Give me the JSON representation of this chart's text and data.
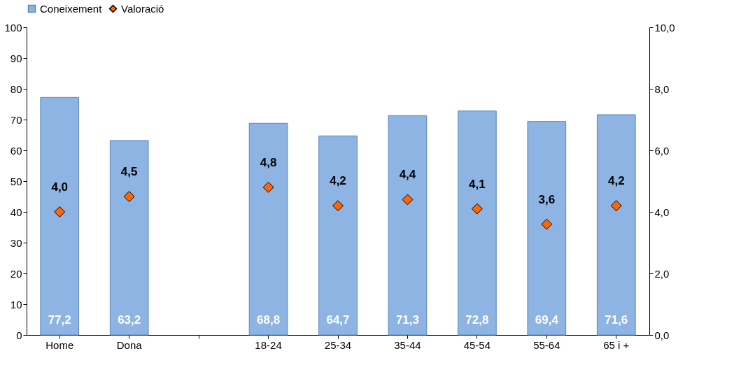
{
  "chart_data": {
    "type": "bar",
    "categories": [
      "Home",
      "Dona",
      null,
      "18-24",
      "25-34",
      "35-44",
      "45-54",
      "55-64",
      "65 i +"
    ],
    "series": [
      {
        "name": "Coneixement",
        "color": "#8db4e2",
        "values": [
          77.2,
          63.2,
          null,
          68.8,
          64.7,
          71.3,
          72.8,
          69.4,
          71.6
        ],
        "value_labels": [
          "77,2",
          "63,2",
          null,
          "68,8",
          "64,7",
          "71,3",
          "72,8",
          "69,4",
          "71,6"
        ]
      },
      {
        "name": "Valoració",
        "type": "scatter",
        "axis": "y2",
        "color": "#ff6600",
        "values": [
          4.0,
          4.5,
          null,
          4.8,
          4.2,
          4.4,
          4.1,
          3.6,
          4.2
        ],
        "value_labels": [
          "4,0",
          "4,5",
          null,
          "4,8",
          "4,2",
          "4,4",
          "4,1",
          "3,6",
          "4,2"
        ]
      }
    ],
    "ylim": [
      0,
      100
    ],
    "yticks": [
      0,
      10,
      20,
      30,
      40,
      50,
      60,
      70,
      80,
      90,
      100
    ],
    "y2lim": [
      0,
      10
    ],
    "y2ticks": [
      {
        "value": 0,
        "label": "0,0"
      },
      {
        "value": 2,
        "label": "2,0"
      },
      {
        "value": 4,
        "label": "4,0"
      },
      {
        "value": 6,
        "label": "6,0"
      },
      {
        "value": 8,
        "label": "8,0"
      },
      {
        "value": 10,
        "label": "10,0"
      }
    ],
    "marker": "diamond",
    "legend": "top",
    "grid": false
  }
}
